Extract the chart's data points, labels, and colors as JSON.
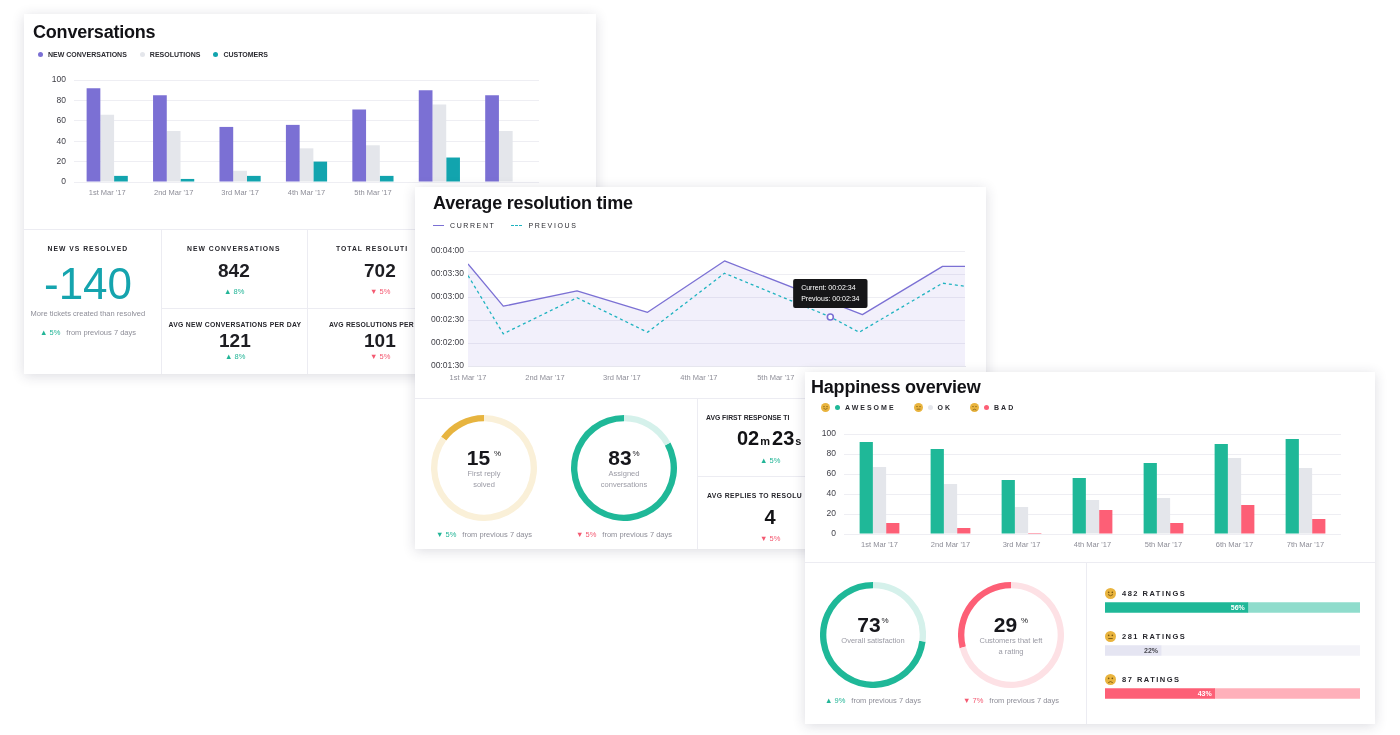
{
  "chart_data": [
    {
      "type": "bar",
      "title": "Conversations",
      "categories": [
        "1st Mar '17",
        "2nd Mar '17",
        "3rd Mar '17",
        "4th Mar '17",
        "5th Mar '17",
        null,
        null
      ],
      "series": [
        {
          "name": "NEW CONVERSATIONS",
          "color": "#7b70d4",
          "values": [
            92,
            85,
            54,
            56,
            71,
            90,
            85
          ]
        },
        {
          "name": "RESOLUTIONS",
          "color": "#e4e6eb",
          "values": [
            66,
            50,
            11,
            33,
            36,
            76,
            50
          ]
        },
        {
          "name": "CUSTOMERS",
          "color": "#12a4ae",
          "values": [
            6,
            3,
            6,
            20,
            6,
            24,
            null
          ]
        }
      ],
      "ylim": [
        0,
        100
      ],
      "yticks": [
        0,
        20,
        40,
        60,
        80,
        100
      ],
      "grid": "y",
      "legend": "top left"
    },
    {
      "type": "other",
      "title": "NEW VS RESOLVED",
      "annotations": [
        "-140",
        "More tickets created than resolved",
        "▲ 5%",
        "from previous 7 days"
      ]
    },
    {
      "type": "other",
      "title": "NEW CONVERSATIONS",
      "annotations": [
        "842",
        "▲ 8%"
      ]
    },
    {
      "type": "other",
      "title": "TOTAL RESOLUTI",
      "annotations": [
        "702",
        "▼ 5%"
      ]
    },
    {
      "type": "other",
      "title": "AVG NEW CONVERSATIONS PER DAY",
      "annotations": [
        "121",
        "▲ 8%"
      ]
    },
    {
      "type": "other",
      "title": "AVG RESOLUTIONS PER",
      "annotations": [
        "101",
        "▼ 5%"
      ]
    },
    {
      "type": "line",
      "title": "Average resolution time",
      "series": [
        {
          "name": "CURRENT",
          "type": "area",
          "color": "#7b70d4",
          "x": [
            "2017-03-01T00:00",
            "2017-03-01T11:00",
            "2017-03-02T10:00",
            "2017-03-03T08:00",
            "2017-03-04T08:00",
            "2017-03-06T03:00",
            "2017-03-07T04:00",
            "2017-03-07T11:00"
          ],
          "values": [
            223,
            168,
            188,
            160,
            227,
            157,
            220,
            220
          ]
        },
        {
          "name": "PREVIOUS",
          "type": "line",
          "line_style": "dashed",
          "color": "#1fb3c0",
          "x": [
            "2017-03-01T00:00",
            "2017-03-01T11:00",
            "2017-03-02T10:00",
            "2017-03-03T08:00",
            "2017-03-04T08:00",
            "2017-03-05T17:00",
            "2017-03-06T02:00",
            "2017-03-07T04:00",
            "2017-03-07T11:00"
          ],
          "values": [
            208,
            132,
            179,
            134,
            211,
            154,
            134,
            198,
            194
          ]
        }
      ],
      "xlim": [
        "2017-03-01T00:00",
        "2017-03-07T11:00"
      ],
      "xticks": [
        {
          "value": "2017-03-01",
          "label": "1st Mar '17"
        },
        {
          "value": "2017-03-02",
          "label": "2nd Mar '17"
        },
        {
          "value": "2017-03-03",
          "label": "3rd Mar '17"
        },
        {
          "value": "2017-03-04",
          "label": "4th Mar '17"
        },
        {
          "value": "2017-03-05",
          "label": "5th Mar '17"
        }
      ],
      "ylim": [
        90,
        240
      ],
      "yticks": [
        {
          "value": 90,
          "label": "00:01:30"
        },
        {
          "value": 120,
          "label": "00:02:00"
        },
        {
          "value": 150,
          "label": "00:02:30"
        },
        {
          "value": 180,
          "label": "00:03:00"
        },
        {
          "value": 210,
          "label": "00:03:30"
        },
        {
          "value": 240,
          "label": "00:04:00"
        }
      ],
      "grid": "y",
      "legend": "top left",
      "annotations": [
        {
          "text": "Current: 00:02:34\nPrevious: 00:02:34",
          "x": "2017-03-05T17:00",
          "y": 154
        }
      ]
    },
    {
      "type": "donut",
      "title": "First reply solved",
      "categories": [
        null,
        null
      ],
      "values": [
        15,
        85
      ],
      "colors": [
        "#e7b43f",
        "#faf0d8"
      ],
      "value_labels": [
        "15 %",
        null
      ],
      "annotations": [
        "▼ 5%",
        "from previous 7 days"
      ]
    },
    {
      "type": "donut",
      "title": "Assigned conversations",
      "categories": [
        null,
        null
      ],
      "values": [
        83,
        17
      ],
      "colors": [
        "#1fb898",
        "#d5f1eb"
      ],
      "value_labels": [
        "83%",
        null
      ],
      "annotations": [
        "▼ 5%",
        "from previous 7 days"
      ]
    },
    {
      "type": "other",
      "title": "AVG FIRST RESPONSE TI",
      "annotations": [
        "02m23s",
        "▲ 5%"
      ]
    },
    {
      "type": "other",
      "title": "AVG REPLIES TO RESOLU",
      "annotations": [
        "4",
        "▼ 5%"
      ]
    },
    {
      "type": "bar",
      "title": "Happiness overview",
      "categories": [
        "1st Mar '17",
        "2nd Mar '17",
        "3rd Mar '17",
        "4th Mar '17",
        "5th Mar '17",
        "6th Mar '17",
        "7th Mar '17"
      ],
      "series": [
        {
          "name": "AWESOME",
          "color": "#1fb898",
          "values": [
            92,
            85,
            54,
            56,
            71,
            90,
            95
          ]
        },
        {
          "name": "OK",
          "color": "#e4e6eb",
          "values": [
            67,
            50,
            27,
            34,
            36,
            76,
            66
          ]
        },
        {
          "name": "BAD",
          "color": "#fd5f76",
          "values": [
            11,
            6,
            1,
            24,
            11,
            29,
            15
          ]
        }
      ],
      "ylim": [
        0,
        100
      ],
      "yticks": [
        0,
        20,
        40,
        60,
        80,
        100
      ],
      "grid": "y",
      "legend": "top left"
    },
    {
      "type": "donut",
      "title": "Overall satisfaction",
      "categories": [
        null,
        null
      ],
      "values": [
        73,
        27
      ],
      "colors": [
        "#1fb898",
        "#d5f1eb"
      ],
      "value_labels": [
        "73%",
        null
      ],
      "annotations": [
        "▲ 9%",
        "from previous 7 days"
      ]
    },
    {
      "type": "donut",
      "title": "Customers that left a rating",
      "categories": [
        null,
        null
      ],
      "values": [
        29,
        71
      ],
      "colors": [
        "#fd5f76",
        "#fde1e5"
      ],
      "value_labels": [
        "29 %",
        null
      ],
      "annotations": [
        "▼ 7%",
        "from previous 7 days"
      ]
    },
    {
      "type": "bar",
      "orientation": "horizontal",
      "stacked": true,
      "categories": [
        "482 RATINGS",
        "281 RATINGS",
        "87 RATINGS"
      ],
      "series": [
        {
          "values": [
            56,
            22,
            43
          ],
          "colors": [
            "#1fb898",
            "#e5e5f2",
            "#fd5f76"
          ],
          "value_labels": [
            "56%",
            "22%",
            "43%"
          ]
        },
        {
          "values": [
            44,
            78,
            57
          ],
          "colors": [
            "#8fdccc",
            "#f3f3f8",
            "#ffb0ba"
          ]
        }
      ],
      "xlim": [
        0,
        100
      ],
      "tick_labels": "y"
    }
  ]
}
